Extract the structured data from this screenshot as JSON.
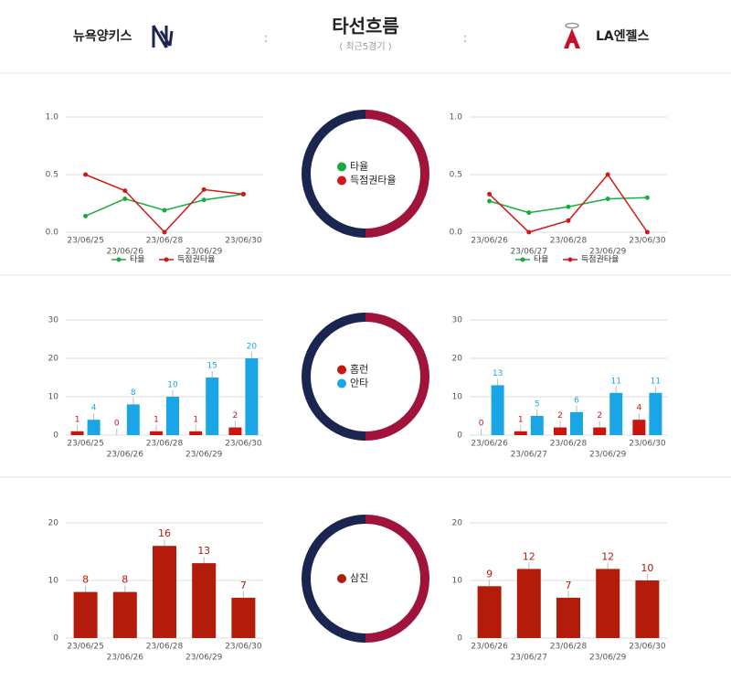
{
  "header": {
    "title": "타선흐름",
    "subtitle": "( 최근5경기 )",
    "home": "뉴욕양키스",
    "away": "LA엔젤스",
    "separator": ":"
  },
  "chart_data": [
    {
      "type": "line",
      "categories": [
        "23/06/25",
        "23/06/26",
        "23/06/28",
        "23/06/29",
        "23/06/30"
      ],
      "series": [
        {
          "name": "타율",
          "color": "#1aab40",
          "values": [
            0.14,
            0.29,
            0.19,
            0.28,
            0.33
          ]
        },
        {
          "name": "득점권타율",
          "color": "#d0191a",
          "values": [
            0.5,
            0.36,
            0,
            0.37,
            0.33
          ]
        }
      ],
      "ylim": [
        0,
        1
      ],
      "yticks": [
        {
          "value": 0,
          "label": "0.0"
        },
        0.5,
        {
          "value": 1,
          "label": "1.0"
        }
      ],
      "grid": true
    },
    {
      "type": "line",
      "categories": [
        "23/06/26",
        "23/06/27",
        "23/06/28",
        "23/06/29",
        "23/06/30"
      ],
      "series": [
        {
          "name": "타율",
          "color": "#1aab40",
          "values": [
            0.27,
            0.17,
            0.22,
            0.29,
            0.3
          ]
        },
        {
          "name": "득점권타율",
          "color": "#d0191a",
          "values": [
            0.33,
            0,
            0.1,
            0.5,
            0
          ]
        }
      ],
      "ylim": [
        0,
        1
      ],
      "yticks": [
        {
          "value": 0,
          "label": "0.0"
        },
        0.5,
        {
          "value": 1,
          "label": "1.0"
        }
      ],
      "grid": true
    },
    {
      "type": "bar",
      "categories": [
        "23/06/25",
        "23/06/26",
        "23/06/28",
        "23/06/29",
        "23/06/30"
      ],
      "series": [
        {
          "name": "홈런",
          "color": "#c9150f",
          "values": [
            1,
            0,
            1,
            1,
            2
          ]
        },
        {
          "name": "안타",
          "color": "#1aa6e6",
          "values": [
            4,
            8,
            10,
            15,
            20
          ]
        }
      ],
      "ylim": [
        0,
        30
      ],
      "yticks": [
        0,
        10,
        20,
        30
      ],
      "grid": true
    },
    {
      "type": "bar",
      "categories": [
        "23/06/26",
        "23/06/27",
        "23/06/28",
        "23/06/29",
        "23/06/30"
      ],
      "series": [
        {
          "name": "홈런",
          "color": "#c9150f",
          "values": [
            0,
            1,
            2,
            2,
            4
          ]
        },
        {
          "name": "안타",
          "color": "#1aa6e6",
          "values": [
            13,
            5,
            6,
            11,
            11
          ]
        }
      ],
      "ylim": [
        0,
        30
      ],
      "yticks": [
        0,
        10,
        20,
        30
      ],
      "grid": true
    },
    {
      "type": "bar",
      "categories": [
        "23/06/25",
        "23/06/26",
        "23/06/28",
        "23/06/29",
        "23/06/30"
      ],
      "series": [
        {
          "name": "삼진",
          "color": "#b31b0a",
          "values": [
            8,
            8,
            16,
            13,
            7
          ]
        }
      ],
      "ylim": [
        0,
        20
      ],
      "yticks": [
        0,
        10,
        20
      ],
      "grid": true
    },
    {
      "type": "bar",
      "categories": [
        "23/06/26",
        "23/06/27",
        "23/06/28",
        "23/06/29",
        "23/06/30"
      ],
      "series": [
        {
          "name": "삼진",
          "color": "#b31b0a",
          "values": [
            9,
            12,
            7,
            12,
            10
          ]
        }
      ],
      "ylim": [
        0,
        20
      ],
      "yticks": [
        0,
        10,
        20
      ],
      "grid": true
    }
  ]
}
